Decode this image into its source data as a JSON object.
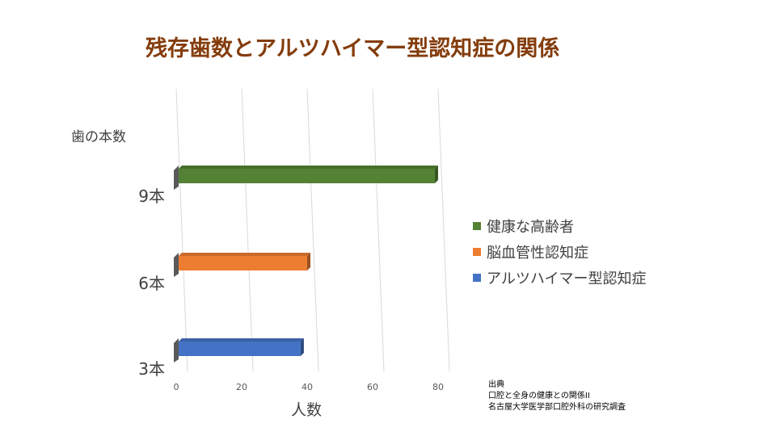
{
  "chart_data": {
    "type": "bar",
    "orientation": "horizontal",
    "title": "残存歯数とアルツハイマー型認知症の関係",
    "ylabel": "歯の本数",
    "xlabel": "人数",
    "categories": [
      "9本",
      "6本",
      "3本"
    ],
    "values": [
      79,
      40,
      38
    ],
    "bar_labels": [
      "健康な高齢者",
      "脳血管性認知症",
      "アルツハイマー型認知症"
    ],
    "colors": [
      "#548235",
      "#ed7d31",
      "#4472c4"
    ],
    "xticks": [
      "0",
      "20",
      "40",
      "60",
      "80"
    ],
    "xlim": [
      0,
      80
    ],
    "grid": true,
    "legend_position": "right",
    "legend": [
      {
        "label": "健康な高齢者",
        "color": "#548235"
      },
      {
        "label": "脳血管性認知症",
        "color": "#ed7d31"
      },
      {
        "label": "アルツハイマー型認知症",
        "color": "#4472c4"
      }
    ]
  },
  "source": {
    "heading": "出典",
    "line1": "口腔と全身の健康との関係II",
    "line2": "名古屋大学医学部口腔外科の研究調査"
  }
}
